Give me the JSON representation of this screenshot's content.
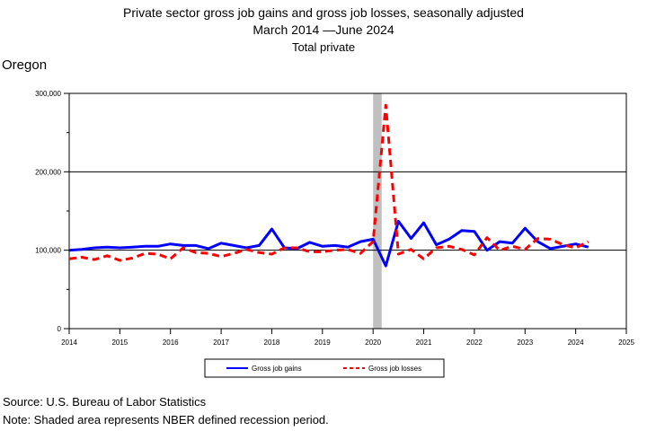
{
  "chart_data": {
    "type": "line",
    "title": "Private sector gross job gains and gross job losses, seasonally adjusted",
    "subtitle_line1": "March 2014 —June 2024",
    "subtitle_line2": "Total private",
    "region": "Oregon",
    "xlabel": "",
    "ylabel": "",
    "ylim": [
      0,
      300000
    ],
    "xlim": [
      2014,
      2025
    ],
    "y_ticks": [
      0,
      100000,
      200000,
      300000
    ],
    "y_tick_labels": [
      "0",
      "100,000",
      "200,000",
      "300,000"
    ],
    "x_ticks": [
      2014,
      2015,
      2016,
      2017,
      2018,
      2019,
      2020,
      2021,
      2022,
      2023,
      2024,
      2025
    ],
    "x_tick_labels": [
      "2014",
      "2015",
      "2016",
      "2017",
      "2018",
      "2019",
      "2020",
      "2021",
      "2022",
      "2023",
      "2024",
      "2025"
    ],
    "gridlines_y": [
      100000,
      200000
    ],
    "recession": [
      2020.0,
      2020.17
    ],
    "legend_position": "bottom-center",
    "series": [
      {
        "name": "Gross job gains",
        "color": "#0000ff",
        "style": "solid",
        "x": [
          2014.0,
          2014.25,
          2014.5,
          2014.75,
          2015.0,
          2015.25,
          2015.5,
          2015.75,
          2016.0,
          2016.25,
          2016.5,
          2016.75,
          2017.0,
          2017.25,
          2017.5,
          2017.75,
          2018.0,
          2018.25,
          2018.5,
          2018.75,
          2019.0,
          2019.25,
          2019.5,
          2019.75,
          2020.0,
          2020.25,
          2020.5,
          2020.75,
          2021.0,
          2021.25,
          2021.5,
          2021.75,
          2022.0,
          2022.25,
          2022.5,
          2022.75,
          2023.0,
          2023.25,
          2023.5,
          2023.75,
          2024.0,
          2024.25
        ],
        "values": [
          100000,
          101000,
          103000,
          104000,
          103000,
          104000,
          105000,
          105000,
          108000,
          106000,
          106000,
          102000,
          109000,
          106000,
          103000,
          106000,
          127000,
          103000,
          102000,
          110000,
          105000,
          106000,
          104000,
          111000,
          114000,
          80000,
          137000,
          115000,
          135000,
          107000,
          114000,
          125000,
          124000,
          100000,
          111000,
          109000,
          128000,
          111000,
          102000,
          105000,
          108000,
          104000
        ]
      },
      {
        "name": "Gross job losses",
        "color": "#ff0000",
        "style": "dashed",
        "x": [
          2014.0,
          2014.25,
          2014.5,
          2014.75,
          2015.0,
          2015.25,
          2015.5,
          2015.75,
          2016.0,
          2016.25,
          2016.5,
          2016.75,
          2017.0,
          2017.25,
          2017.5,
          2017.75,
          2018.0,
          2018.25,
          2018.5,
          2018.75,
          2019.0,
          2019.25,
          2019.5,
          2019.75,
          2020.0,
          2020.25,
          2020.5,
          2020.75,
          2021.0,
          2021.25,
          2021.5,
          2021.75,
          2022.0,
          2022.25,
          2022.5,
          2022.75,
          2023.0,
          2023.25,
          2023.5,
          2023.75,
          2024.0,
          2024.25
        ],
        "values": [
          89000,
          91000,
          88000,
          93000,
          87000,
          90000,
          96000,
          95000,
          89000,
          103000,
          97000,
          96000,
          92000,
          96000,
          101000,
          97000,
          95000,
          103000,
          103000,
          98000,
          98000,
          100000,
          101000,
          96000,
          111000,
          285000,
          95000,
          101000,
          89000,
          103000,
          105000,
          101000,
          94000,
          116000,
          100000,
          105000,
          101000,
          115000,
          114000,
          107000,
          103000,
          111000
        ]
      }
    ]
  },
  "footer": {
    "source": "Source: U.S. Bureau of Labor Statistics",
    "note": "Note: Shaded area represents NBER defined recession period."
  }
}
